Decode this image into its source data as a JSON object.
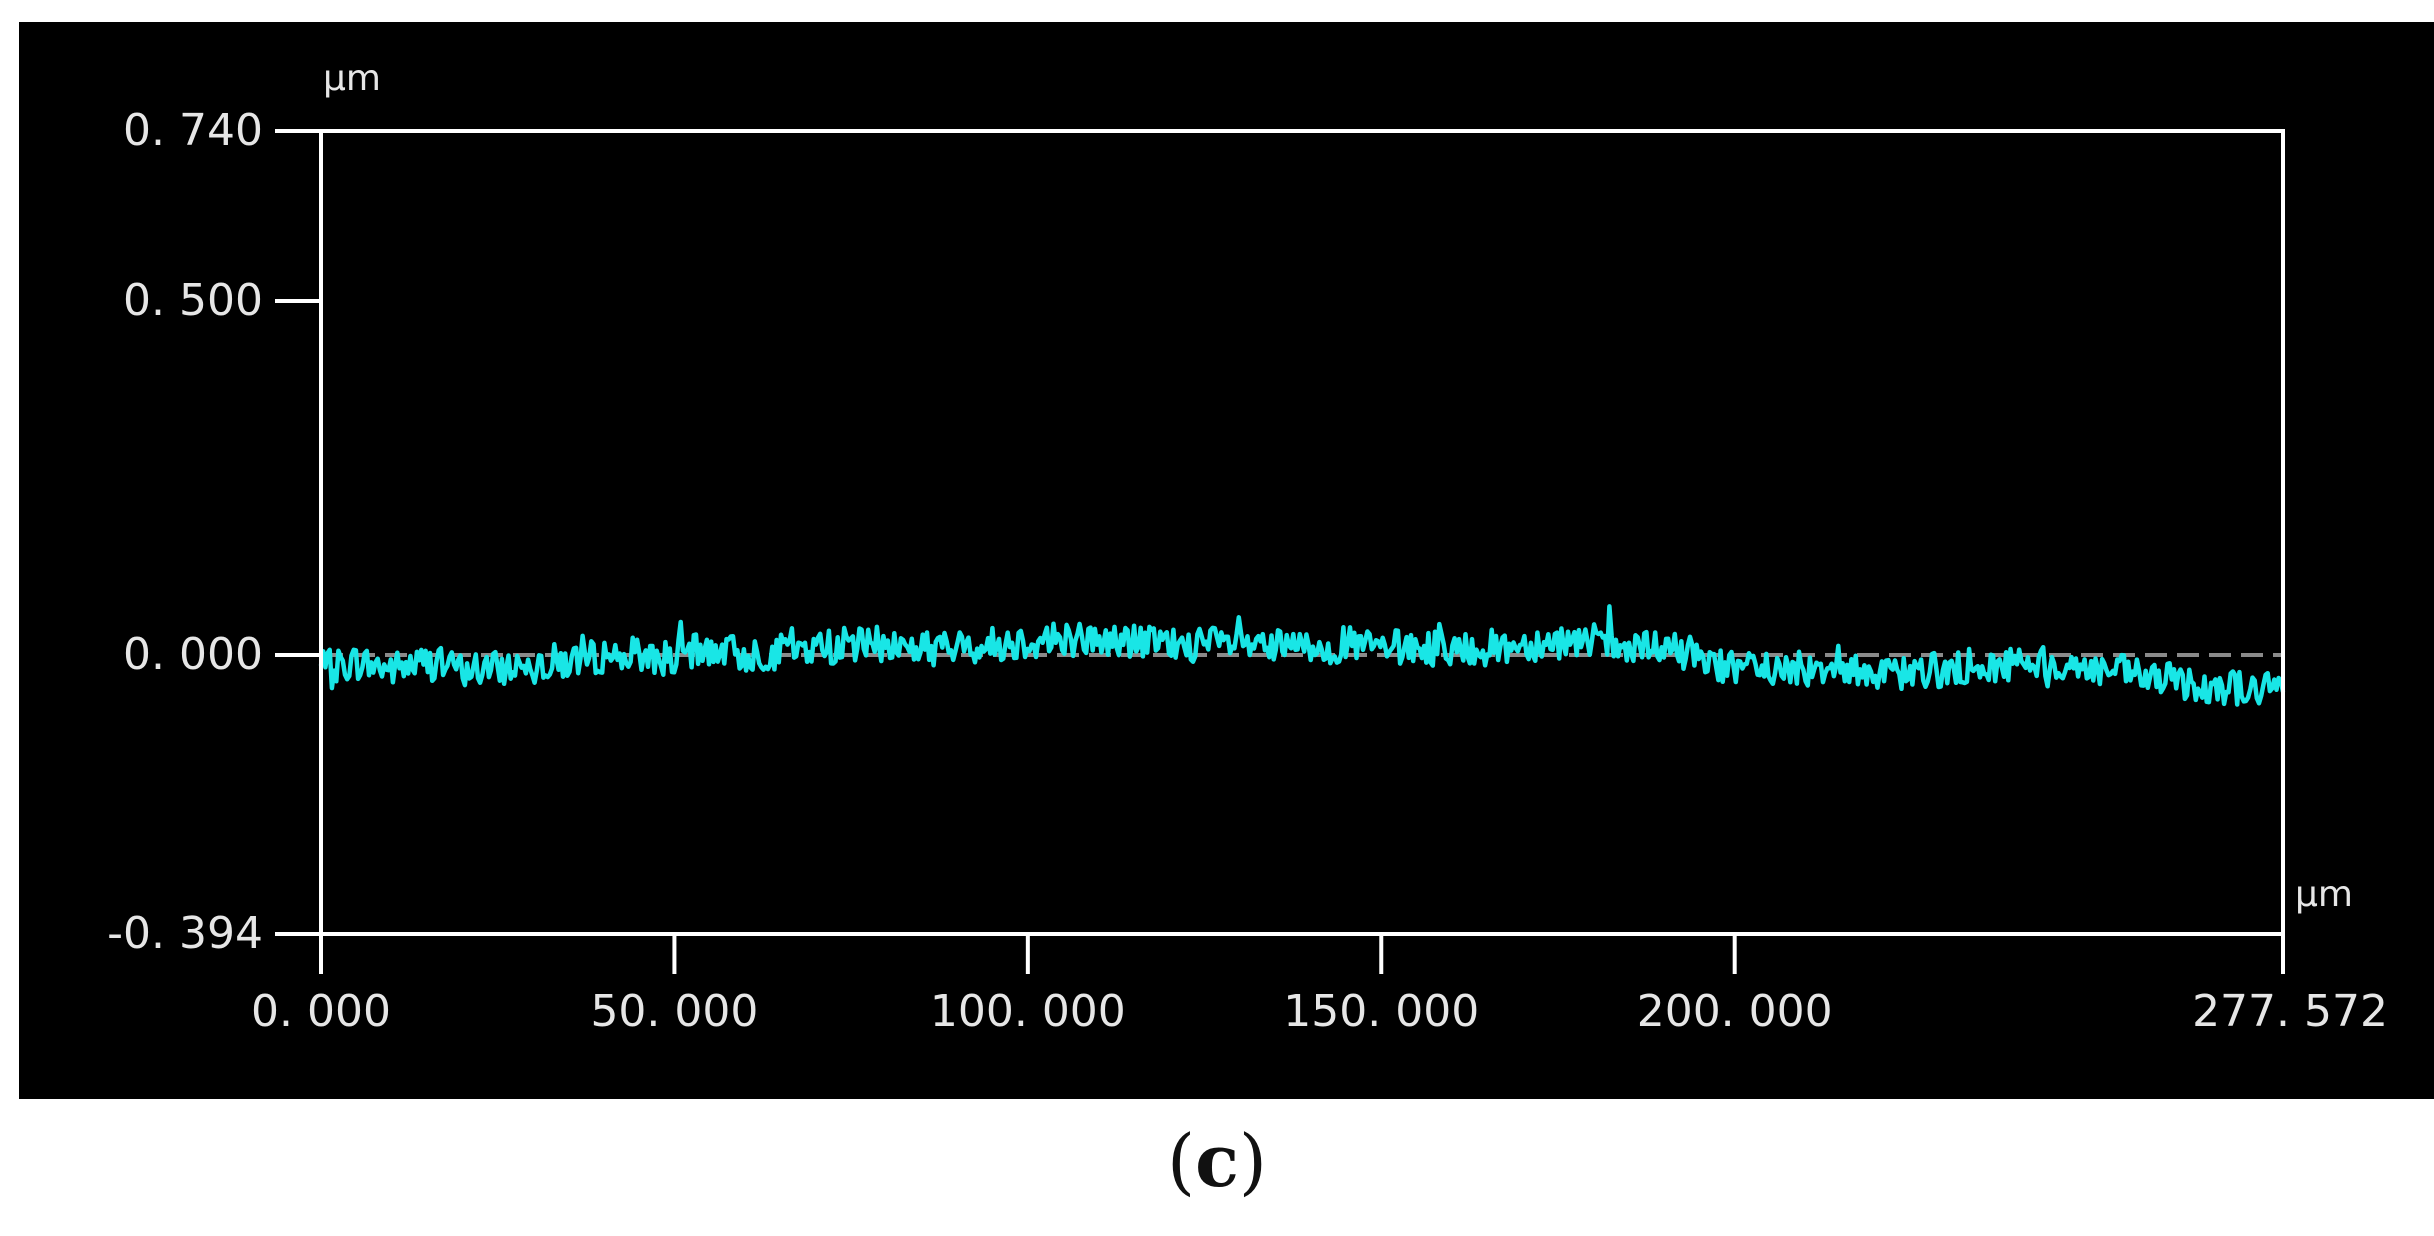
{
  "caption": {
    "open": "(",
    "letter": "c",
    "close": ")"
  },
  "colors": {
    "background": "#000000",
    "frame": "#ffffff",
    "text": "#e6e6e6",
    "series": "#19e6e6",
    "zero_line": "#8a8a8a"
  },
  "chart_data": {
    "type": "line",
    "title": "",
    "xlabel": "µm",
    "ylabel": "µm",
    "xlim": [
      0.0,
      277.572
    ],
    "ylim": [
      -0.394,
      0.74
    ],
    "x_ticks": [
      {
        "value": 0.0,
        "label": "0. 000"
      },
      {
        "value": 50.0,
        "label": "50. 000"
      },
      {
        "value": 100.0,
        "label": "100. 000"
      },
      {
        "value": 150.0,
        "label": "150. 000"
      },
      {
        "value": 200.0,
        "label": "200. 000"
      },
      {
        "value": 277.572,
        "label": "277. 572"
      }
    ],
    "y_ticks": [
      {
        "value": 0.74,
        "label": "0. 740"
      },
      {
        "value": 0.5,
        "label": "0. 500"
      },
      {
        "value": 0.0,
        "label": "0. 000"
      },
      {
        "value": -0.394,
        "label": "-0. 394"
      }
    ],
    "reference_line": {
      "y": 0.0,
      "style": "dashed"
    },
    "grid": false,
    "legend": "none",
    "series": [
      {
        "x": [
          0,
          5,
          10,
          15,
          20,
          25,
          30,
          35,
          40,
          45,
          50,
          55,
          60,
          65,
          70,
          75,
          80,
          85,
          90,
          95,
          100,
          105,
          110,
          115,
          120,
          125,
          130,
          135,
          140,
          145,
          150,
          155,
          160,
          165,
          170,
          175,
          180,
          185,
          190,
          195,
          200,
          205,
          210,
          215,
          220,
          225,
          230,
          235,
          240,
          245,
          250,
          255,
          260,
          265,
          270,
          275,
          277.572
        ],
        "y": [
          -0.02,
          -0.01,
          -0.02,
          -0.01,
          -0.02,
          -0.02,
          -0.01,
          -0.01,
          0.0,
          0.0,
          -0.005,
          0.01,
          0.0,
          0.005,
          0.01,
          0.015,
          0.015,
          0.01,
          0.01,
          0.015,
          0.02,
          0.025,
          0.02,
          0.02,
          0.015,
          0.015,
          0.015,
          0.01,
          0.01,
          0.015,
          0.01,
          0.01,
          0.01,
          0.01,
          0.015,
          0.02,
          0.02,
          0.005,
          0.01,
          0.0,
          -0.02,
          -0.02,
          -0.02,
          -0.01,
          -0.03,
          -0.025,
          -0.02,
          -0.02,
          -0.01,
          -0.01,
          -0.02,
          -0.025,
          -0.035,
          -0.04,
          -0.045,
          -0.05,
          -0.045
        ]
      }
    ]
  }
}
